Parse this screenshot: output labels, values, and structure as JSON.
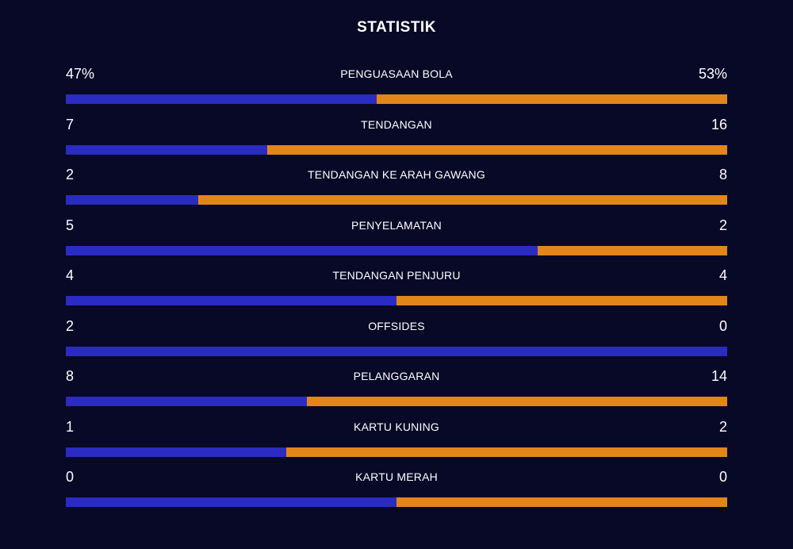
{
  "title": "STATISTIK",
  "colors": {
    "background": "#080827",
    "home_bar": "#2a2bc2",
    "away_bar": "#e38619",
    "text": "#ffffff"
  },
  "stats": [
    {
      "label": "PENGUASAAN BOLA",
      "home": "47%",
      "away": "53%",
      "home_share": 0.47
    },
    {
      "label": "TENDANGAN",
      "home": "7",
      "away": "16",
      "home_share": 0.304
    },
    {
      "label": "TENDANGAN KE ARAH GAWANG",
      "home": "2",
      "away": "8",
      "home_share": 0.2
    },
    {
      "label": "PENYELAMATAN",
      "home": "5",
      "away": "2",
      "home_share": 0.714
    },
    {
      "label": "TENDANGAN PENJURU",
      "home": "4",
      "away": "4",
      "home_share": 0.5
    },
    {
      "label": "OFFSIDES",
      "home": "2",
      "away": "0",
      "home_share": 1.0
    },
    {
      "label": "PELANGGARAN",
      "home": "8",
      "away": "14",
      "home_share": 0.364
    },
    {
      "label": "KARTU KUNING",
      "home": "1",
      "away": "2",
      "home_share": 0.333
    },
    {
      "label": "KARTU MERAH",
      "home": "0",
      "away": "0",
      "home_share": 0.5
    }
  ]
}
